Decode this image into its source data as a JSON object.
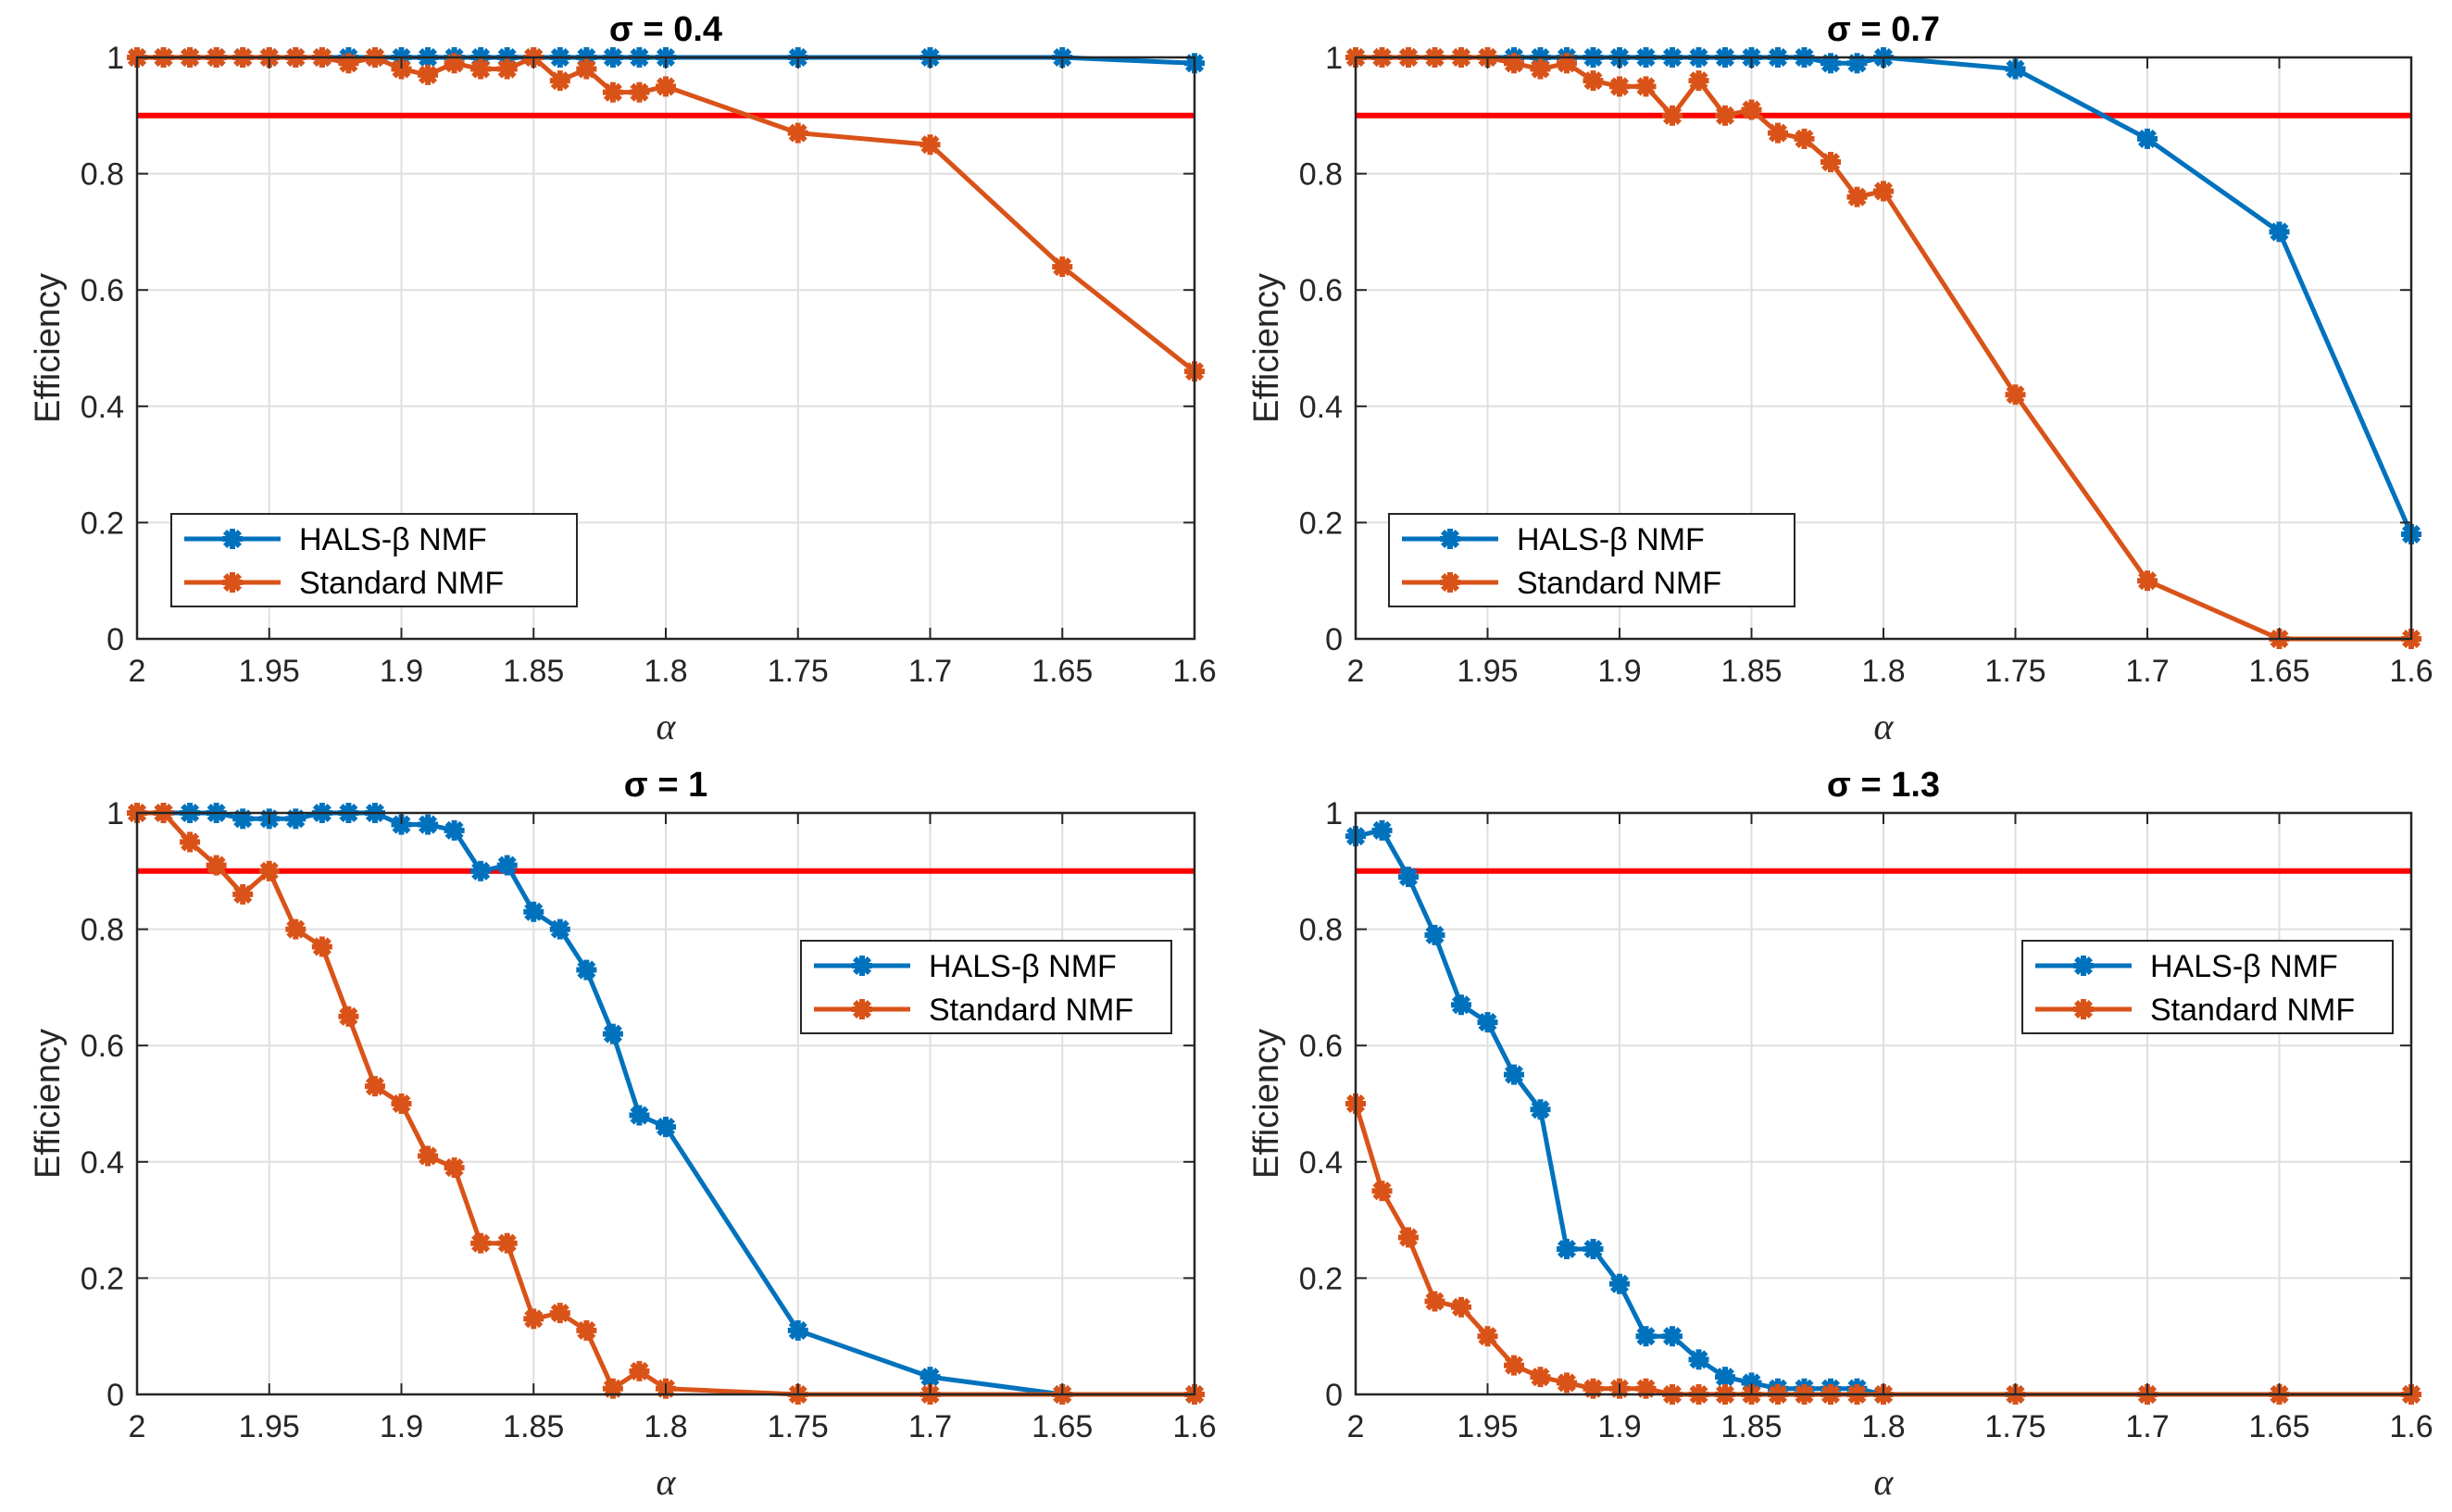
{
  "figure": {
    "colors": {
      "halsBeta": "#0072BD",
      "standard": "#D95319",
      "threshold": "#FF0000",
      "grid": "#DFDFDF",
      "axis": "#262626"
    }
  },
  "chart_data": [
    {
      "type": "line",
      "title": "σ = 0.4",
      "xlabel": "α",
      "ylabel": "Efficiency",
      "xlim": [
        1.6,
        2
      ],
      "x_reversed": true,
      "ylim": [
        0,
        1
      ],
      "xticks": [
        "2",
        "1.95",
        "1.9",
        "1.85",
        "1.8",
        "1.75",
        "1.7",
        "1.65",
        "1.6"
      ],
      "yticks": [
        "0",
        "0.2",
        "0.4",
        "0.6",
        "0.8",
        "1"
      ],
      "grid": true,
      "legend_position": "lower-left",
      "threshold": 0.9,
      "series": [
        {
          "name": "HALS-β NMF",
          "color_key": "halsBeta",
          "x": [
            2,
            1.99,
            1.98,
            1.97,
            1.96,
            1.95,
            1.94,
            1.93,
            1.92,
            1.91,
            1.9,
            1.89,
            1.88,
            1.87,
            1.86,
            1.85,
            1.84,
            1.83,
            1.82,
            1.81,
            1.8,
            1.75,
            1.7,
            1.65,
            1.6
          ],
          "y": [
            1,
            1,
            1,
            1,
            1,
            1,
            1,
            1,
            1,
            1,
            1,
            1,
            1,
            1,
            1,
            1,
            1,
            1,
            1,
            1,
            1,
            1,
            1,
            1,
            0.99
          ]
        },
        {
          "name": "Standard NMF",
          "color_key": "standard",
          "x": [
            2,
            1.99,
            1.98,
            1.97,
            1.96,
            1.95,
            1.94,
            1.93,
            1.92,
            1.91,
            1.9,
            1.89,
            1.88,
            1.87,
            1.86,
            1.85,
            1.84,
            1.83,
            1.82,
            1.81,
            1.8,
            1.75,
            1.7,
            1.65,
            1.6
          ],
          "y": [
            1,
            1,
            1,
            1,
            1,
            1,
            1,
            1,
            0.99,
            1,
            0.98,
            0.97,
            0.99,
            0.98,
            0.98,
            1,
            0.96,
            0.98,
            0.94,
            0.94,
            0.95,
            0.87,
            0.85,
            0.64,
            0.46
          ]
        }
      ]
    },
    {
      "type": "line",
      "title": "σ = 0.7",
      "xlabel": "α",
      "ylabel": "Efficiency",
      "xlim": [
        1.6,
        2
      ],
      "x_reversed": true,
      "ylim": [
        0,
        1
      ],
      "xticks": [
        "2",
        "1.95",
        "1.9",
        "1.85",
        "1.8",
        "1.75",
        "1.7",
        "1.65",
        "1.6"
      ],
      "yticks": [
        "0",
        "0.2",
        "0.4",
        "0.6",
        "0.8",
        "1"
      ],
      "grid": true,
      "legend_position": "lower-left",
      "threshold": 0.9,
      "series": [
        {
          "name": "HALS-β NMF",
          "color_key": "halsBeta",
          "x": [
            2,
            1.99,
            1.98,
            1.97,
            1.96,
            1.95,
            1.94,
            1.93,
            1.92,
            1.91,
            1.9,
            1.89,
            1.88,
            1.87,
            1.86,
            1.85,
            1.84,
            1.83,
            1.82,
            1.81,
            1.8,
            1.75,
            1.7,
            1.65,
            1.6
          ],
          "y": [
            1,
            1,
            1,
            1,
            1,
            1,
            1,
            1,
            1,
            1,
            1,
            1,
            1,
            1,
            1,
            1,
            1,
            1,
            0.99,
            0.99,
            1,
            0.98,
            0.86,
            0.7,
            0.18
          ]
        },
        {
          "name": "Standard NMF",
          "color_key": "standard",
          "x": [
            2,
            1.99,
            1.98,
            1.97,
            1.96,
            1.95,
            1.94,
            1.93,
            1.92,
            1.91,
            1.9,
            1.89,
            1.88,
            1.87,
            1.86,
            1.85,
            1.84,
            1.83,
            1.82,
            1.81,
            1.8,
            1.75,
            1.7,
            1.65,
            1.6
          ],
          "y": [
            1,
            1,
            1,
            1,
            1,
            1,
            0.99,
            0.98,
            0.99,
            0.96,
            0.95,
            0.95,
            0.9,
            0.96,
            0.9,
            0.91,
            0.87,
            0.86,
            0.82,
            0.76,
            0.77,
            0.42,
            0.1,
            0,
            0
          ]
        }
      ]
    },
    {
      "type": "line",
      "title": "σ = 1",
      "xlabel": "α",
      "ylabel": "Efficiency",
      "xlim": [
        1.6,
        2
      ],
      "x_reversed": true,
      "ylim": [
        0,
        1
      ],
      "xticks": [
        "2",
        "1.95",
        "1.9",
        "1.85",
        "1.8",
        "1.75",
        "1.7",
        "1.65",
        "1.6"
      ],
      "yticks": [
        "0",
        "0.2",
        "0.4",
        "0.6",
        "0.8",
        "1"
      ],
      "grid": true,
      "legend_position": "upper-right",
      "threshold": 0.9,
      "series": [
        {
          "name": "HALS-β NMF",
          "color_key": "halsBeta",
          "x": [
            2,
            1.99,
            1.98,
            1.97,
            1.96,
            1.95,
            1.94,
            1.93,
            1.92,
            1.91,
            1.9,
            1.89,
            1.88,
            1.87,
            1.86,
            1.85,
            1.84,
            1.83,
            1.82,
            1.81,
            1.8,
            1.75,
            1.7,
            1.65,
            1.6
          ],
          "y": [
            1,
            1,
            1,
            1,
            0.99,
            0.99,
            0.99,
            1,
            1,
            1,
            0.98,
            0.98,
            0.97,
            0.9,
            0.91,
            0.83,
            0.8,
            0.73,
            0.62,
            0.48,
            0.46,
            0.11,
            0.03,
            0,
            0
          ]
        },
        {
          "name": "Standard NMF",
          "color_key": "standard",
          "x": [
            2,
            1.99,
            1.98,
            1.97,
            1.96,
            1.95,
            1.94,
            1.93,
            1.92,
            1.91,
            1.9,
            1.89,
            1.88,
            1.87,
            1.86,
            1.85,
            1.84,
            1.83,
            1.82,
            1.81,
            1.8,
            1.75,
            1.7,
            1.65,
            1.6
          ],
          "y": [
            1,
            1,
            0.95,
            0.91,
            0.86,
            0.9,
            0.8,
            0.77,
            0.65,
            0.53,
            0.5,
            0.41,
            0.39,
            0.26,
            0.26,
            0.13,
            0.14,
            0.11,
            0.01,
            0.04,
            0.01,
            0,
            0,
            0,
            0
          ]
        }
      ]
    },
    {
      "type": "line",
      "title": "σ = 1.3",
      "xlabel": "α",
      "ylabel": "Efficiency",
      "xlim": [
        1.6,
        2
      ],
      "x_reversed": true,
      "ylim": [
        0,
        1
      ],
      "xticks": [
        "2",
        "1.95",
        "1.9",
        "1.85",
        "1.8",
        "1.75",
        "1.7",
        "1.65",
        "1.6"
      ],
      "yticks": [
        "0",
        "0.2",
        "0.4",
        "0.6",
        "0.8",
        "1"
      ],
      "grid": true,
      "legend_position": "upper-right",
      "threshold": 0.9,
      "series": [
        {
          "name": "HALS-β NMF",
          "color_key": "halsBeta",
          "x": [
            2,
            1.99,
            1.98,
            1.97,
            1.96,
            1.95,
            1.94,
            1.93,
            1.92,
            1.91,
            1.9,
            1.89,
            1.88,
            1.87,
            1.86,
            1.85,
            1.84,
            1.83,
            1.82,
            1.81,
            1.8,
            1.75,
            1.7,
            1.65,
            1.6
          ],
          "y": [
            0.96,
            0.97,
            0.89,
            0.79,
            0.67,
            0.64,
            0.55,
            0.49,
            0.25,
            0.25,
            0.19,
            0.1,
            0.1,
            0.06,
            0.03,
            0.02,
            0.01,
            0.01,
            0.01,
            0.01,
            0,
            0,
            0,
            0,
            0
          ]
        },
        {
          "name": "Standard NMF",
          "color_key": "standard",
          "x": [
            2,
            1.99,
            1.98,
            1.97,
            1.96,
            1.95,
            1.94,
            1.93,
            1.92,
            1.91,
            1.9,
            1.89,
            1.88,
            1.87,
            1.86,
            1.85,
            1.84,
            1.83,
            1.82,
            1.81,
            1.8,
            1.75,
            1.7,
            1.65,
            1.6
          ],
          "y": [
            0.5,
            0.35,
            0.27,
            0.16,
            0.15,
            0.1,
            0.05,
            0.03,
            0.02,
            0.01,
            0.01,
            0.01,
            0,
            0,
            0,
            0,
            0,
            0,
            0,
            0,
            0,
            0,
            0,
            0,
            0
          ]
        }
      ]
    }
  ]
}
